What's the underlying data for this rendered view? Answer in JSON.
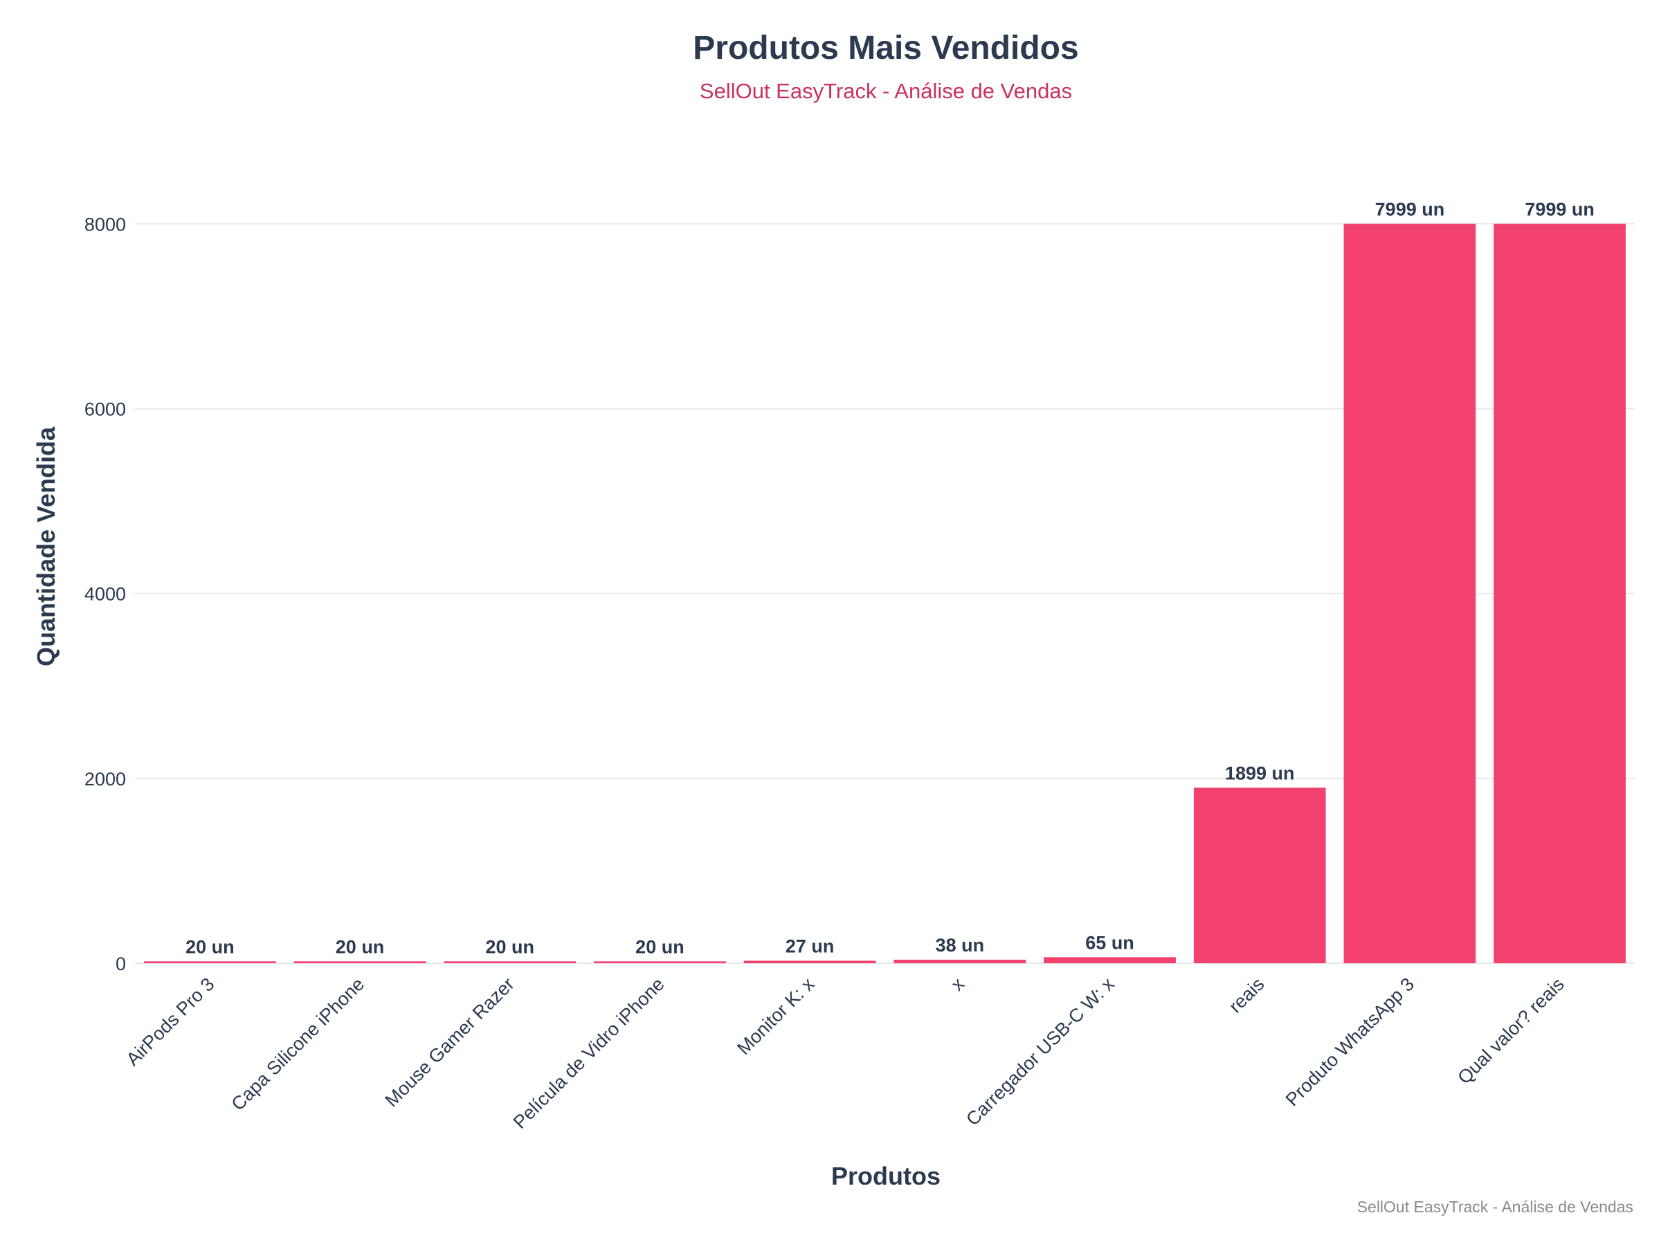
{
  "chart_data": {
    "type": "bar",
    "title": "Produtos Mais Vendidos",
    "subtitle": "SellOut EasyTrack - Análise de Vendas",
    "xlabel": "Produtos",
    "ylabel": "Quantidade Vendida",
    "caption": "SellOut EasyTrack - Análise de Vendas",
    "categories": [
      "AirPods Pro 3",
      "Capa Silicone iPhone",
      "Mouse Gamer Razer",
      "Película de Vidro iPhone",
      "Monitor K: x",
      "x",
      "Carregador USB-C W: x",
      "reais",
      "Produto WhatsApp 3",
      "Qual valor? reais"
    ],
    "values": [
      20,
      20,
      20,
      20,
      27,
      38,
      65,
      1899,
      7999,
      7999
    ],
    "value_labels": [
      "20 un",
      "20 un",
      "20 un",
      "20 un",
      "27 un",
      "38 un",
      "65 un",
      "1899 un",
      "7999 un",
      "7999 un"
    ],
    "ylim": [
      0,
      8400
    ],
    "yticks": [
      0,
      2000,
      4000,
      6000,
      8000
    ],
    "ytick_labels": [
      "0",
      "2000",
      "4000",
      "6000",
      "8000"
    ],
    "grid": "horizontal",
    "colors": {
      "bar": "#f2416e",
      "title": "#2b3a4f",
      "subtitle": "#c9325d",
      "axis_text": "#2b3a4f",
      "caption": "#8a8a8a",
      "grid": "#e8e8e8"
    }
  }
}
